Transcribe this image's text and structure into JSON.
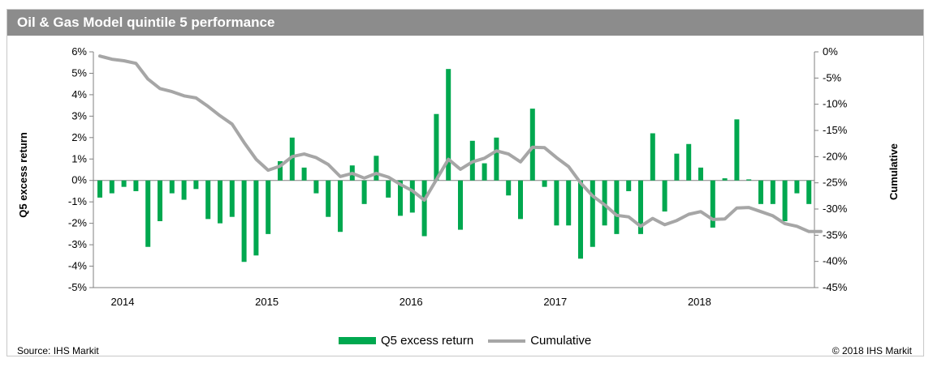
{
  "title": "Oil & Gas Model quintile 5 performance",
  "source": "Source: IHS Markit",
  "copyright": "© 2018 IHS Markit",
  "colors": {
    "bar": "#00a84f",
    "line": "#a6a6a6",
    "title_bg": "#8c8c8c"
  },
  "chart_data": {
    "type": "bar",
    "title": "Oil & Gas Model quintile 5 performance",
    "ylabel": "Q5 excess return",
    "y2label": "Cumulative",
    "ylim": [
      -5,
      6
    ],
    "y2lim": [
      -45,
      0
    ],
    "yticks": [
      "6%",
      "5%",
      "4%",
      "3%",
      "2%",
      "1%",
      "0%",
      "-1%",
      "-2%",
      "-3%",
      "-4%",
      "-5%"
    ],
    "y2ticks": [
      "0%",
      "-5%",
      "-10%",
      "-15%",
      "-20%",
      "-25%",
      "-30%",
      "-35%",
      "-40%",
      "-45%"
    ],
    "xticks": [
      "2014",
      "2015",
      "2016",
      "2017",
      "2018"
    ],
    "grid": false,
    "legend_position": "bottom",
    "x": [
      "2014-01",
      "2014-02",
      "2014-03",
      "2014-04",
      "2014-05",
      "2014-06",
      "2014-07",
      "2014-08",
      "2014-09",
      "2014-10",
      "2014-11",
      "2014-12",
      "2015-01",
      "2015-02",
      "2015-03",
      "2015-04",
      "2015-05",
      "2015-06",
      "2015-07",
      "2015-08",
      "2015-09",
      "2015-10",
      "2015-11",
      "2015-12",
      "2016-01",
      "2016-02",
      "2016-03",
      "2016-04",
      "2016-05",
      "2016-06",
      "2016-07",
      "2016-08",
      "2016-09",
      "2016-10",
      "2016-11",
      "2016-12",
      "2017-01",
      "2017-02",
      "2017-03",
      "2017-04",
      "2017-05",
      "2017-06",
      "2017-07",
      "2017-08",
      "2017-09",
      "2017-10",
      "2017-11",
      "2017-12",
      "2018-01",
      "2018-02",
      "2018-03",
      "2018-04",
      "2018-05",
      "2018-06",
      "2018-07",
      "2018-08",
      "2018-09",
      "2018-10",
      "2018-11",
      "2018-12",
      "2019-01"
    ],
    "series": [
      {
        "name": "Q5 excess return",
        "type": "bar",
        "values": [
          -0.8,
          -0.6,
          -0.3,
          -0.5,
          -3.1,
          -1.9,
          -0.6,
          -0.9,
          -0.4,
          -1.8,
          -2.0,
          -1.7,
          -3.8,
          -3.5,
          -2.5,
          0.9,
          2.0,
          0.6,
          -0.6,
          -1.7,
          -2.4,
          0.7,
          -1.1,
          1.15,
          -0.8,
          -1.65,
          -1.5,
          -2.6,
          3.1,
          5.2,
          -2.3,
          1.85,
          0.8,
          2.0,
          -0.7,
          -1.8,
          3.35,
          -0.3,
          -2.1,
          -2.1,
          -3.65,
          -3.1,
          -2.1,
          -2.5,
          -0.5,
          -2.5,
          2.2,
          -1.45,
          1.25,
          1.7,
          0.6,
          -2.2,
          0.1,
          2.85,
          0.05,
          -1.1,
          -1.1,
          -1.9,
          -0.6,
          -1.1,
          0
        ]
      },
      {
        "name": "Cumulative",
        "type": "line",
        "axis": "right",
        "values": [
          -0.8,
          -1.4,
          -1.7,
          -2.2,
          -5.2,
          -7.0,
          -7.6,
          -8.4,
          -8.8,
          -10.4,
          -12.2,
          -13.8,
          -17.3,
          -20.5,
          -22.6,
          -21.8,
          -20.0,
          -19.5,
          -20.2,
          -21.5,
          -23.8,
          -23.2,
          -24.1,
          -23.2,
          -23.9,
          -25.3,
          -26.5,
          -28.3,
          -24.4,
          -20.5,
          -22.4,
          -21.0,
          -20.3,
          -18.9,
          -19.5,
          -21.0,
          -18.2,
          -18.3,
          -20.2,
          -21.9,
          -25.0,
          -27.5,
          -29.2,
          -31.2,
          -31.5,
          -33.3,
          -31.8,
          -33.0,
          -32.2,
          -31.0,
          -30.5,
          -32.0,
          -31.9,
          -29.8,
          -29.7,
          -30.5,
          -31.3,
          -32.8,
          -33.3,
          -34.3,
          -34.3
        ]
      }
    ]
  },
  "legend": [
    {
      "label": "Q5 excess return"
    },
    {
      "label": "Cumulative"
    }
  ]
}
